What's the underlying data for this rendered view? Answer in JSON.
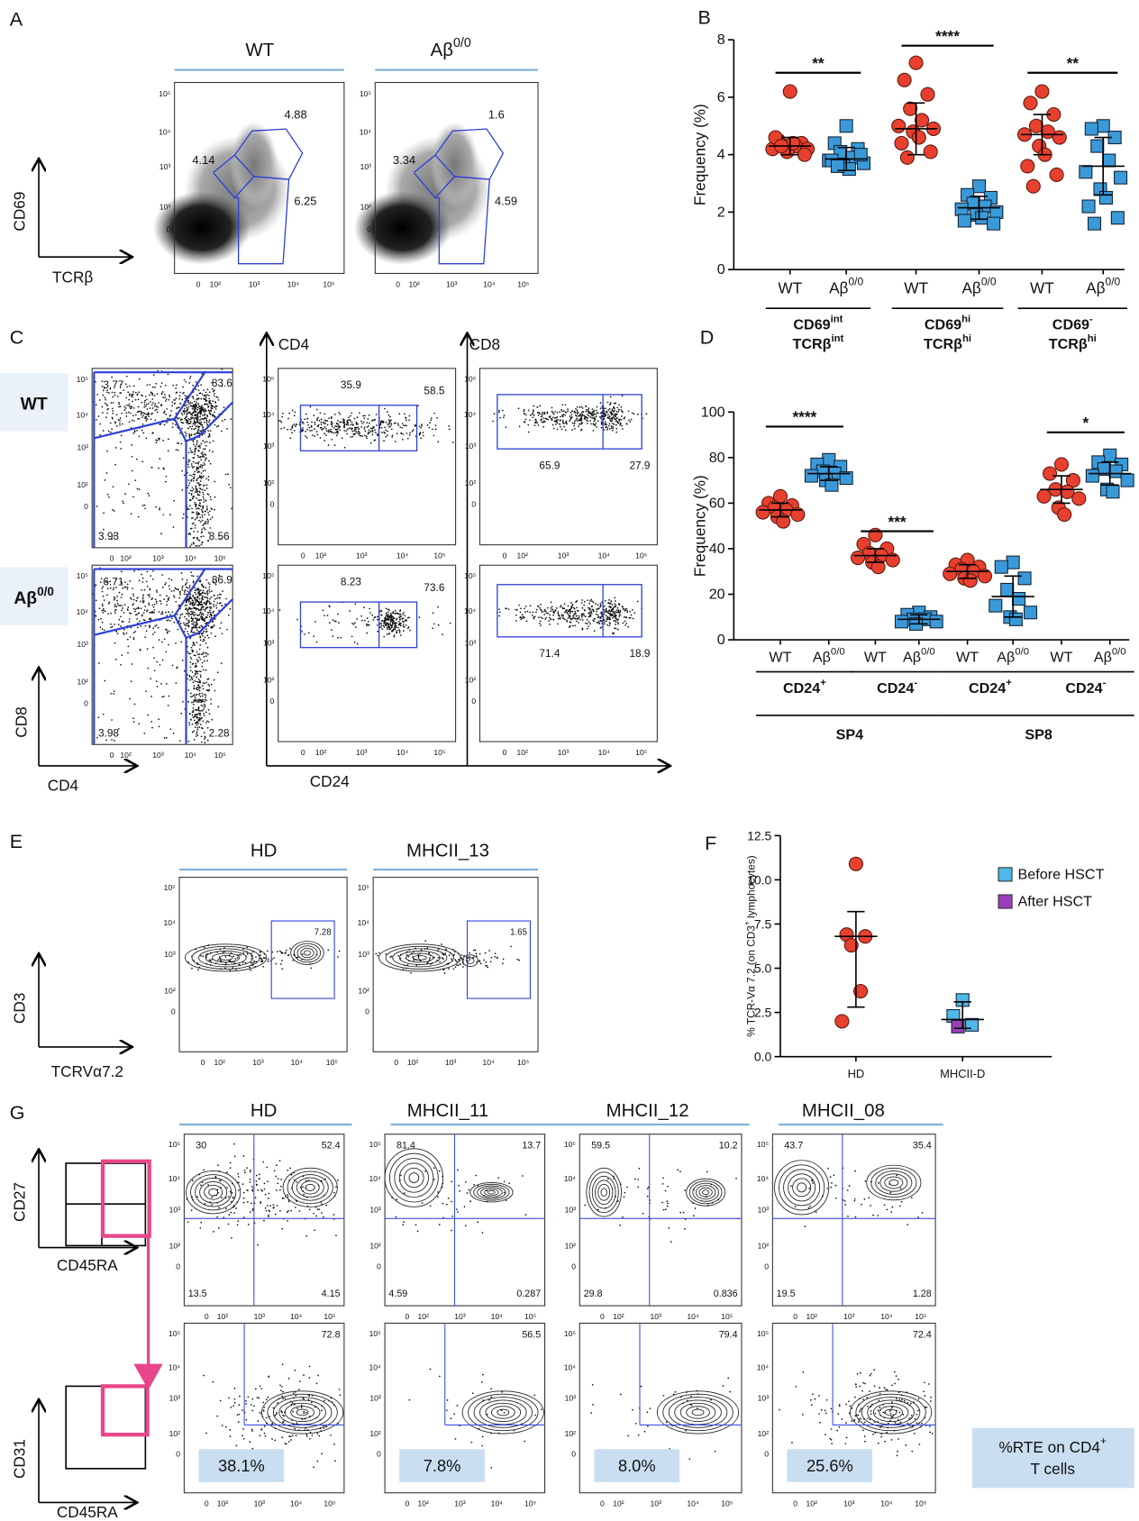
{
  "panels": [
    "A",
    "B",
    "C",
    "D",
    "E",
    "F",
    "G"
  ],
  "flow_ticks": [
    "0",
    "10²",
    "10³",
    "10⁴",
    "10⁵"
  ],
  "panel_a": {
    "headers": [
      {
        "text": "WT"
      },
      {
        "text": "Aβ",
        "sup": "0/0"
      }
    ],
    "y_axis": "CD69",
    "x_axis": "TCRβ",
    "gates": [
      [
        "4.14",
        "4.88",
        "6.25"
      ],
      [
        "3.34",
        "1.6",
        "4.59"
      ]
    ]
  },
  "panel_c": {
    "rows": [
      {
        "text": "WT"
      },
      {
        "text": "Aβ",
        "sup": "0/0"
      }
    ],
    "col_labels": [
      "CD4",
      "CD8"
    ],
    "y_axis": "CD8",
    "x_axis": "CD4",
    "x_axis2": "CD24",
    "quadrants": [
      [
        "3.77",
        "83.6",
        "3.93",
        "8.56"
      ],
      [
        "6.71",
        "86.9",
        "3.98",
        "2.28"
      ]
    ],
    "cd4_gates": [
      [
        "35.9",
        "58.5"
      ],
      [
        "8.23",
        "73.6"
      ]
    ],
    "cd8_gates": [
      [
        "65.9",
        "27.9"
      ],
      [
        "71.4",
        "18.9"
      ]
    ]
  },
  "panel_e": {
    "headers": [
      "HD",
      "MHCII_13"
    ],
    "y_axis": "CD3",
    "x_axis": "TCRVα7.2",
    "gates": [
      "7.28",
      "1.65"
    ]
  },
  "panel_g": {
    "headers": [
      "HD",
      "MHCII_11",
      "MHCII_12",
      "MHCII_08"
    ],
    "y_axis1": "CD27",
    "y_axis2": "CD31",
    "x_axis": "CD45RA",
    "quadrants": [
      [
        "30",
        "52.4",
        "13.5",
        "4.15"
      ],
      [
        "81.4",
        "13.7",
        "4.59",
        "0.287"
      ],
      [
        "59.5",
        "10.2",
        "29.8",
        "0.836"
      ],
      [
        "43.7",
        "35.4",
        "19.5",
        "1.28"
      ]
    ],
    "rte_gates": [
      "72.8",
      "56.5",
      "79.4",
      "72.4"
    ],
    "rte": [
      "38.1%",
      "7.8%",
      "8.0%",
      "25.6%"
    ],
    "rte_note": [
      {
        "text": "%RTE on CD4",
        "sup": "+"
      },
      {
        "text": "T cells"
      }
    ]
  },
  "chart_data": [
    {
      "type": "dot",
      "ylabel": {
        "text": "Frequency (%)"
      },
      "ylim": [
        0,
        8
      ],
      "yticks": [
        0,
        2,
        4,
        6,
        8
      ],
      "categories": [
        {
          "text": "WT"
        },
        {
          "text": "Aβ",
          "sup": "0/0"
        },
        {
          "text": "WT"
        },
        {
          "text": "Aβ",
          "sup": "0/0"
        },
        {
          "text": "WT"
        },
        {
          "text": "Aβ",
          "sup": "0/0"
        }
      ],
      "colors": [
        "#e8402f",
        "#3a9ad9",
        "#e8402f",
        "#3a9ad9",
        "#e8402f",
        "#3a9ad9"
      ],
      "markers": [
        "circle",
        "square",
        "circle",
        "square",
        "circle",
        "square"
      ],
      "values": [
        [
          6.2,
          4.5,
          4.4,
          4.3,
          4.3,
          4.2,
          4.2,
          4.1,
          4.4,
          4.6,
          4.0,
          4.3
        ],
        [
          5.0,
          4.4,
          4.2,
          4.1,
          3.9,
          3.8,
          3.7,
          3.6,
          3.5,
          3.8,
          4.0,
          3.6
        ],
        [
          7.2,
          6.6,
          6.1,
          5.6,
          5.2,
          5.0,
          4.9,
          4.8,
          4.6,
          4.4,
          4.1,
          3.9
        ],
        [
          2.9,
          2.6,
          2.5,
          2.3,
          2.2,
          2.1,
          2.0,
          1.9,
          1.8,
          1.7,
          1.6
        ],
        [
          6.2,
          5.8,
          5.4,
          5.0,
          4.8,
          4.7,
          4.6,
          4.3,
          4.0,
          3.6,
          3.3,
          2.9
        ],
        [
          5.0,
          4.9,
          4.6,
          4.3,
          3.8,
          3.4,
          3.2,
          2.8,
          2.5,
          2.2,
          1.8,
          1.6
        ]
      ],
      "means": [
        4.3,
        3.85,
        4.9,
        2.15,
        4.7,
        3.6
      ],
      "ranges": [
        [
          4.0,
          4.6
        ],
        [
          3.45,
          4.25
        ],
        [
          4.0,
          5.8
        ],
        [
          1.75,
          2.55
        ],
        [
          4.0,
          5.4
        ],
        [
          2.6,
          4.6
        ]
      ],
      "significance": [
        "**",
        "****",
        "**"
      ],
      "groups": [
        [
          {
            "text": "CD69",
            "sup": "int"
          },
          {
            "text": "TCRβ",
            "sup": "int"
          }
        ],
        [
          {
            "text": "CD69",
            "sup": "hi"
          },
          {
            "text": "TCRβ",
            "sup": "hi"
          }
        ],
        [
          {
            "text": "CD69",
            "sup": "-"
          },
          {
            "text": "TCRβ",
            "sup": "hi"
          }
        ]
      ]
    },
    {
      "type": "dot",
      "ylabel": {
        "text": "Frequency (%)"
      },
      "ylim": [
        0,
        100
      ],
      "yticks": [
        0,
        20,
        40,
        60,
        80,
        100
      ],
      "categories": [
        {
          "text": "WT"
        },
        {
          "text": "Aβ",
          "sup": "0/0"
        },
        {
          "text": "WT"
        },
        {
          "text": "Aβ",
          "sup": "0/0"
        },
        {
          "text": "WT"
        },
        {
          "text": "Aβ",
          "sup": "0/0"
        },
        {
          "text": "WT"
        },
        {
          "text": "Aβ",
          "sup": "0/0"
        }
      ],
      "colors": [
        "#e8402f",
        "#3a9ad9",
        "#e8402f",
        "#3a9ad9",
        "#e8402f",
        "#3a9ad9",
        "#e8402f",
        "#3a9ad9"
      ],
      "markers": [
        "circle",
        "square",
        "circle",
        "square",
        "circle",
        "square",
        "circle",
        "square"
      ],
      "values": [
        [
          63,
          60,
          59,
          58,
          57,
          56,
          55,
          54,
          52
        ],
        [
          79,
          77,
          76,
          74,
          73,
          72,
          71,
          70,
          68
        ],
        [
          46,
          42,
          40,
          38,
          37,
          36,
          35,
          34,
          32
        ],
        [
          12,
          11,
          10,
          9,
          9,
          8,
          8,
          7
        ],
        [
          35,
          33,
          32,
          31,
          30,
          29,
          28,
          27,
          26
        ],
        [
          34,
          32,
          27,
          22,
          18,
          15,
          12,
          10,
          9
        ],
        [
          77,
          73,
          70,
          66,
          65,
          63,
          62,
          58,
          55
        ],
        [
          81,
          78,
          77,
          75,
          74,
          72,
          70,
          66,
          65
        ]
      ],
      "means": [
        57,
        73,
        37,
        9,
        30,
        19,
        66,
        73
      ],
      "ranges": [
        [
          54,
          60
        ],
        [
          70,
          76
        ],
        [
          34,
          40
        ],
        [
          7,
          11
        ],
        [
          27,
          33
        ],
        [
          10,
          28
        ],
        [
          60,
          72
        ],
        [
          68,
          78
        ]
      ],
      "significance": [
        "****",
        "***",
        null,
        "*"
      ],
      "groups": [
        [
          {
            "text": "CD24",
            "sup": "+"
          }
        ],
        [
          {
            "text": "CD24",
            "sup": "-"
          }
        ],
        [
          {
            "text": "CD24",
            "sup": "+"
          }
        ],
        [
          {
            "text": "CD24",
            "sup": "-"
          }
        ]
      ],
      "supergroups": [
        "SP4",
        "SP8"
      ]
    },
    {
      "type": "dot",
      "ylabel": {
        "text": "% TCR-Vα 7.2 (on CD3",
        "sup": "+",
        "after": " lymphocytes)"
      },
      "ylim": [
        0,
        12.5
      ],
      "yticks": [
        {
          "value": 0,
          "label": "0.0"
        },
        {
          "value": 2.5,
          "label": "2.5"
        },
        {
          "value": 5,
          "label": "5.0"
        },
        {
          "value": 7.5,
          "label": "7.5"
        },
        {
          "value": 10,
          "label": "10.0"
        },
        {
          "value": 12.5,
          "label": "12.5"
        }
      ],
      "categories": [
        {
          "text": "HD"
        },
        {
          "text": "MHCII-D"
        }
      ],
      "markers": [
        "circle",
        "square"
      ],
      "values": [
        [
          10.9,
          6.9,
          6.8,
          6.3,
          3.7,
          2.0
        ],
        [
          3.2,
          2.3,
          1.8,
          1.7
        ]
      ],
      "point_colors": [
        [
          "#e8402f",
          "#e8402f",
          "#e8402f",
          "#e8402f",
          "#e8402f",
          "#e8402f"
        ],
        [
          "#4fb8e8",
          "#4fb8e8",
          "#4fb8e8",
          "#9b3fb8"
        ]
      ],
      "means": [
        6.8,
        2.1
      ],
      "ranges": [
        [
          2.8,
          8.2
        ],
        [
          1.6,
          3.1
        ]
      ],
      "legend": [
        {
          "name": "Before HSCT",
          "color": "#4fb8e8"
        },
        {
          "name": "After HSCT",
          "color": "#9b3fb8"
        }
      ]
    }
  ]
}
